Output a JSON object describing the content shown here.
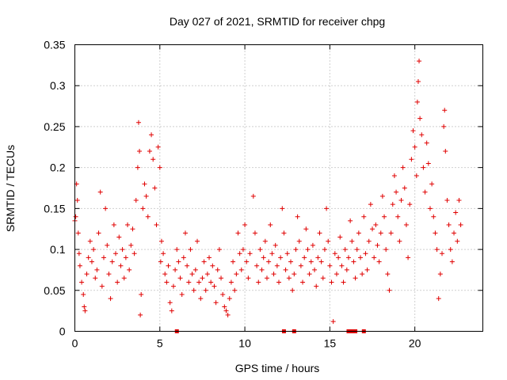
{
  "chart_data": {
    "type": "scatter",
    "title": "Day 027 of 2021, SRMTID for receiver chpg",
    "xlabel": "GPS time / hours",
    "ylabel": "SRMTID / TECUs",
    "xlim": [
      0,
      24
    ],
    "ylim": [
      0,
      0.35
    ],
    "xticks": [
      0,
      5,
      10,
      15,
      20
    ],
    "xtick_labels": [
      "0",
      "5",
      "10",
      "15",
      "20"
    ],
    "yticks": [
      0,
      0.05,
      0.1,
      0.15,
      0.2,
      0.25,
      0.3,
      0.35
    ],
    "ytick_labels": [
      "0",
      "0.05",
      "0.1",
      "0.15",
      "0.2",
      "0.25",
      "0.3",
      "0.35"
    ],
    "grid": true,
    "marker": "+",
    "color": "#e00000",
    "series": [
      {
        "name": "SRMTID",
        "points": [
          [
            0.0,
            0.135
          ],
          [
            0.05,
            0.14
          ],
          [
            0.1,
            0.18
          ],
          [
            0.15,
            0.16
          ],
          [
            0.2,
            0.12
          ],
          [
            0.25,
            0.095
          ],
          [
            0.3,
            0.08
          ],
          [
            0.4,
            0.06
          ],
          [
            0.5,
            0.045
          ],
          [
            0.55,
            0.03
          ],
          [
            0.6,
            0.025
          ],
          [
            0.7,
            0.07
          ],
          [
            0.8,
            0.09
          ],
          [
            0.9,
            0.11
          ],
          [
            1.0,
            0.085
          ],
          [
            1.1,
            0.1
          ],
          [
            1.2,
            0.065
          ],
          [
            1.3,
            0.075
          ],
          [
            1.4,
            0.12
          ],
          [
            1.5,
            0.17
          ],
          [
            1.6,
            0.055
          ],
          [
            1.7,
            0.09
          ],
          [
            1.8,
            0.15
          ],
          [
            1.9,
            0.105
          ],
          [
            2.0,
            0.07
          ],
          [
            2.1,
            0.04
          ],
          [
            2.2,
            0.085
          ],
          [
            2.3,
            0.13
          ],
          [
            2.4,
            0.095
          ],
          [
            2.5,
            0.06
          ],
          [
            2.6,
            0.115
          ],
          [
            2.7,
            0.08
          ],
          [
            2.8,
            0.1
          ],
          [
            2.9,
            0.065
          ],
          [
            3.0,
            0.09
          ],
          [
            3.1,
            0.13
          ],
          [
            3.2,
            0.075
          ],
          [
            3.3,
            0.105
          ],
          [
            3.4,
            0.125
          ],
          [
            3.5,
            0.095
          ],
          [
            3.6,
            0.16
          ],
          [
            3.7,
            0.2
          ],
          [
            3.75,
            0.255
          ],
          [
            3.8,
            0.22
          ],
          [
            3.85,
            0.02
          ],
          [
            3.9,
            0.045
          ],
          [
            4.0,
            0.15
          ],
          [
            4.1,
            0.18
          ],
          [
            4.2,
            0.165
          ],
          [
            4.3,
            0.14
          ],
          [
            4.4,
            0.22
          ],
          [
            4.5,
            0.24
          ],
          [
            4.6,
            0.21
          ],
          [
            4.7,
            0.175
          ],
          [
            4.8,
            0.13
          ],
          [
            4.9,
            0.225
          ],
          [
            5.0,
            0.2
          ],
          [
            5.05,
            0.085
          ],
          [
            5.1,
            0.11
          ],
          [
            5.2,
            0.095
          ],
          [
            5.3,
            0.07
          ],
          [
            5.4,
            0.06
          ],
          [
            5.5,
            0.08
          ],
          [
            5.6,
            0.035
          ],
          [
            5.7,
            0.025
          ],
          [
            5.8,
            0.055
          ],
          [
            5.9,
            0.075
          ],
          [
            6.0,
            0.1
          ],
          [
            6.1,
            0.085
          ],
          [
            6.2,
            0.065
          ],
          [
            6.3,
            0.045
          ],
          [
            6.4,
            0.09
          ],
          [
            6.5,
            0.12
          ],
          [
            6.6,
            0.08
          ],
          [
            6.7,
            0.06
          ],
          [
            6.8,
            0.1
          ],
          [
            6.9,
            0.07
          ],
          [
            7.0,
            0.05
          ],
          [
            7.1,
            0.075
          ],
          [
            7.2,
            0.11
          ],
          [
            7.3,
            0.06
          ],
          [
            7.4,
            0.04
          ],
          [
            7.5,
            0.065
          ],
          [
            7.6,
            0.085
          ],
          [
            7.7,
            0.05
          ],
          [
            7.8,
            0.07
          ],
          [
            7.9,
            0.09
          ],
          [
            8.0,
            0.06
          ],
          [
            8.1,
            0.08
          ],
          [
            8.2,
            0.055
          ],
          [
            8.3,
            0.035
          ],
          [
            8.4,
            0.075
          ],
          [
            8.5,
            0.1
          ],
          [
            8.6,
            0.065
          ],
          [
            8.7,
            0.045
          ],
          [
            8.8,
            0.03
          ],
          [
            8.9,
            0.025
          ],
          [
            9.0,
            0.02
          ],
          [
            9.1,
            0.04
          ],
          [
            9.2,
            0.06
          ],
          [
            9.3,
            0.085
          ],
          [
            9.4,
            0.05
          ],
          [
            9.5,
            0.07
          ],
          [
            9.6,
            0.12
          ],
          [
            9.7,
            0.095
          ],
          [
            9.8,
            0.075
          ],
          [
            9.9,
            0.1
          ],
          [
            10.0,
            0.13
          ],
          [
            10.1,
            0.085
          ],
          [
            10.2,
            0.065
          ],
          [
            10.3,
            0.095
          ],
          [
            10.5,
            0.165
          ],
          [
            10.6,
            0.12
          ],
          [
            10.7,
            0.08
          ],
          [
            10.8,
            0.06
          ],
          [
            10.9,
            0.1
          ],
          [
            11.0,
            0.075
          ],
          [
            11.1,
            0.09
          ],
          [
            11.2,
            0.11
          ],
          [
            11.3,
            0.065
          ],
          [
            11.4,
            0.085
          ],
          [
            11.5,
            0.13
          ],
          [
            11.6,
            0.095
          ],
          [
            11.7,
            0.07
          ],
          [
            11.8,
            0.105
          ],
          [
            11.9,
            0.08
          ],
          [
            12.0,
            0.06
          ],
          [
            12.1,
            0.09
          ],
          [
            12.2,
            0.15
          ],
          [
            12.3,
            0.12
          ],
          [
            12.4,
            0.075
          ],
          [
            12.5,
            0.095
          ],
          [
            12.6,
            0.065
          ],
          [
            12.7,
            0.085
          ],
          [
            12.8,
            0.05
          ],
          [
            12.9,
            0.07
          ],
          [
            13.0,
            0.1
          ],
          [
            13.1,
            0.14
          ],
          [
            13.2,
            0.11
          ],
          [
            13.3,
            0.08
          ],
          [
            13.4,
            0.06
          ],
          [
            13.5,
            0.09
          ],
          [
            13.6,
            0.125
          ],
          [
            13.7,
            0.1
          ],
          [
            13.8,
            0.07
          ],
          [
            13.9,
            0.085
          ],
          [
            14.0,
            0.105
          ],
          [
            14.1,
            0.075
          ],
          [
            14.2,
            0.055
          ],
          [
            14.3,
            0.09
          ],
          [
            14.4,
            0.12
          ],
          [
            14.5,
            0.085
          ],
          [
            14.6,
            0.065
          ],
          [
            14.7,
            0.1
          ],
          [
            14.8,
            0.15
          ],
          [
            14.9,
            0.11
          ],
          [
            15.0,
            0.08
          ],
          [
            15.1,
            0.06
          ],
          [
            15.2,
            0.012
          ],
          [
            15.3,
            0.095
          ],
          [
            15.4,
            0.07
          ],
          [
            15.5,
            0.09
          ],
          [
            15.6,
            0.115
          ],
          [
            15.7,
            0.08
          ],
          [
            15.8,
            0.06
          ],
          [
            15.9,
            0.1
          ],
          [
            16.0,
            0.075
          ],
          [
            16.1,
            0.09
          ],
          [
            16.2,
            0.135
          ],
          [
            16.3,
            0.11
          ],
          [
            16.4,
            0.085
          ],
          [
            16.5,
            0.065
          ],
          [
            16.6,
            0.1
          ],
          [
            16.7,
            0.12
          ],
          [
            16.8,
            0.09
          ],
          [
            16.9,
            0.07
          ],
          [
            17.0,
            0.14
          ],
          [
            17.1,
            0.095
          ],
          [
            17.2,
            0.075
          ],
          [
            17.3,
            0.11
          ],
          [
            17.4,
            0.155
          ],
          [
            17.5,
            0.125
          ],
          [
            17.6,
            0.09
          ],
          [
            17.7,
            0.13
          ],
          [
            17.8,
            0.105
          ],
          [
            17.9,
            0.085
          ],
          [
            18.0,
            0.12
          ],
          [
            18.1,
            0.165
          ],
          [
            18.2,
            0.14
          ],
          [
            18.3,
            0.1
          ],
          [
            18.4,
            0.07
          ],
          [
            18.5,
            0.05
          ],
          [
            18.6,
            0.12
          ],
          [
            18.7,
            0.155
          ],
          [
            18.8,
            0.19
          ],
          [
            18.9,
            0.17
          ],
          [
            19.0,
            0.14
          ],
          [
            19.1,
            0.11
          ],
          [
            19.2,
            0.16
          ],
          [
            19.3,
            0.2
          ],
          [
            19.4,
            0.175
          ],
          [
            19.5,
            0.13
          ],
          [
            19.6,
            0.09
          ],
          [
            19.7,
            0.155
          ],
          [
            19.8,
            0.21
          ],
          [
            19.9,
            0.245
          ],
          [
            20.0,
            0.225
          ],
          [
            20.1,
            0.19
          ],
          [
            20.15,
            0.28
          ],
          [
            20.2,
            0.305
          ],
          [
            20.25,
            0.33
          ],
          [
            20.3,
            0.26
          ],
          [
            20.4,
            0.24
          ],
          [
            20.5,
            0.2
          ],
          [
            20.6,
            0.17
          ],
          [
            20.7,
            0.23
          ],
          [
            20.8,
            0.205
          ],
          [
            20.9,
            0.15
          ],
          [
            21.0,
            0.18
          ],
          [
            21.1,
            0.14
          ],
          [
            21.2,
            0.12
          ],
          [
            21.3,
            0.1
          ],
          [
            21.4,
            0.04
          ],
          [
            21.5,
            0.07
          ],
          [
            21.6,
            0.095
          ],
          [
            21.7,
            0.25
          ],
          [
            21.75,
            0.27
          ],
          [
            21.8,
            0.22
          ],
          [
            21.9,
            0.16
          ],
          [
            22.0,
            0.13
          ],
          [
            22.1,
            0.1
          ],
          [
            22.2,
            0.085
          ],
          [
            22.3,
            0.12
          ],
          [
            22.4,
            0.145
          ],
          [
            22.5,
            0.11
          ],
          [
            22.6,
            0.16
          ],
          [
            22.7,
            0.13
          ]
        ]
      }
    ],
    "flags_at_zero": [
      6.0,
      12.3,
      12.9,
      16.1,
      16.3,
      16.5,
      17.0
    ]
  }
}
